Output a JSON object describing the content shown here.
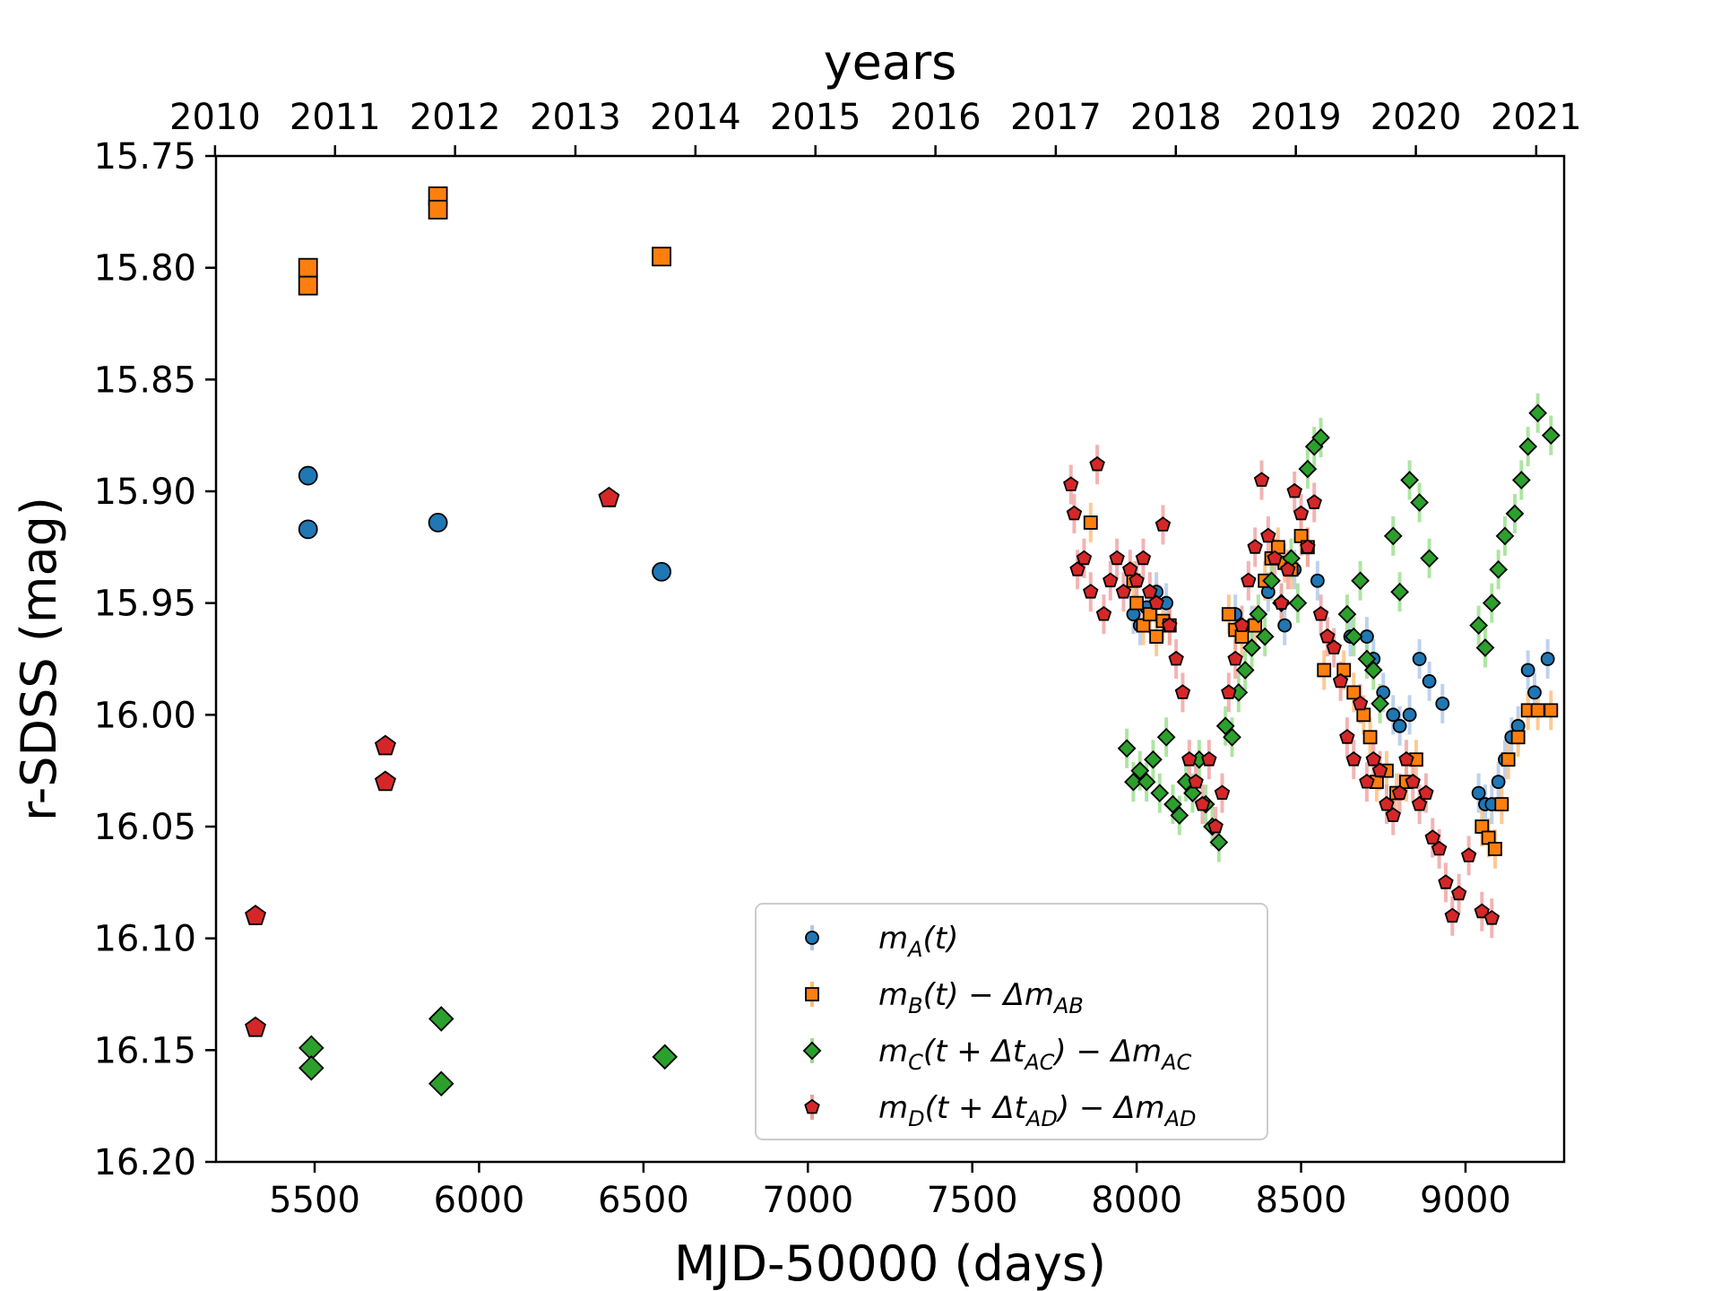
{
  "chart_data": {
    "type": "scatter",
    "xlabel": "MJD-50000 (days)",
    "ylabel": "r-SDSS (mag)",
    "top_xlabel": "years",
    "xlim": [
      5200,
      9300
    ],
    "ylim": [
      16.2,
      15.75
    ],
    "y_inverted": true,
    "x_ticks": [
      5500,
      6000,
      6500,
      7000,
      7500,
      8000,
      8500,
      9000
    ],
    "x_tick_labels": [
      "5500",
      "6000",
      "6500",
      "7000",
      "7500",
      "8000",
      "8500",
      "9000"
    ],
    "y_ticks": [
      15.75,
      15.8,
      15.85,
      15.9,
      15.95,
      16.0,
      16.05,
      16.1,
      16.15,
      16.2
    ],
    "y_tick_labels": [
      "15.75",
      "15.80",
      "15.85",
      "15.90",
      "15.95",
      "16.00",
      "16.05",
      "16.10",
      "16.15",
      "16.20"
    ],
    "year_ticks": [
      {
        "label": "2010",
        "mjd": 5197
      },
      {
        "label": "2011",
        "mjd": 5562
      },
      {
        "label": "2012",
        "mjd": 5927
      },
      {
        "label": "2013",
        "mjd": 6293
      },
      {
        "label": "2014",
        "mjd": 6658
      },
      {
        "label": "2015",
        "mjd": 7023
      },
      {
        "label": "2016",
        "mjd": 7388
      },
      {
        "label": "2017",
        "mjd": 7754
      },
      {
        "label": "2018",
        "mjd": 8119
      },
      {
        "label": "2019",
        "mjd": 8484
      },
      {
        "label": "2020",
        "mjd": 8849
      },
      {
        "label": "2021",
        "mjd": 9215
      }
    ],
    "legend_position": "lower-right",
    "series": [
      {
        "name": "A",
        "legend": "m_A(t)",
        "color": "#1f77b4",
        "errcolor": "#aec7e8",
        "marker": "circle",
        "early": [
          [
            5480,
            15.893
          ],
          [
            5480,
            15.917
          ],
          [
            5875,
            15.914
          ],
          [
            6555,
            15.936
          ]
        ],
        "late": [
          [
            7990,
            15.955
          ],
          [
            8010,
            15.96
          ],
          [
            8030,
            15.952
          ],
          [
            8060,
            15.945
          ],
          [
            8090,
            15.95
          ],
          [
            8300,
            15.955
          ],
          [
            8350,
            15.96
          ],
          [
            8400,
            15.945
          ],
          [
            8450,
            15.96
          ],
          [
            8480,
            15.935
          ],
          [
            8550,
            15.94
          ],
          [
            8650,
            15.965
          ],
          [
            8700,
            15.965
          ],
          [
            8720,
            15.975
          ],
          [
            8750,
            15.99
          ],
          [
            8780,
            16.0
          ],
          [
            8800,
            16.005
          ],
          [
            8830,
            16.0
          ],
          [
            8860,
            15.975
          ],
          [
            8890,
            15.985
          ],
          [
            8930,
            15.995
          ],
          [
            9040,
            16.035
          ],
          [
            9060,
            16.04
          ],
          [
            9080,
            16.04
          ],
          [
            9100,
            16.03
          ],
          [
            9120,
            16.02
          ],
          [
            9140,
            16.01
          ],
          [
            9160,
            16.005
          ],
          [
            9190,
            15.98
          ],
          [
            9210,
            15.99
          ],
          [
            9250,
            15.975
          ]
        ]
      },
      {
        "name": "B",
        "legend": "m_B(t) − Δm_AB",
        "color": "#ff7f0e",
        "errcolor": "#ffbb78",
        "marker": "square",
        "early": [
          [
            5480,
            15.8
          ],
          [
            5480,
            15.808
          ],
          [
            5875,
            15.768
          ],
          [
            5875,
            15.774
          ],
          [
            6555,
            15.795
          ]
        ],
        "late": [
          [
            7860,
            15.914
          ],
          [
            7990,
            15.94
          ],
          [
            8000,
            15.95
          ],
          [
            8020,
            15.96
          ],
          [
            8040,
            15.955
          ],
          [
            8060,
            15.965
          ],
          [
            8080,
            15.958
          ],
          [
            8100,
            15.96
          ],
          [
            8280,
            15.955
          ],
          [
            8300,
            15.962
          ],
          [
            8320,
            15.965
          ],
          [
            8360,
            15.96
          ],
          [
            8390,
            15.94
          ],
          [
            8410,
            15.93
          ],
          [
            8430,
            15.925
          ],
          [
            8450,
            15.932
          ],
          [
            8470,
            15.935
          ],
          [
            8500,
            15.92
          ],
          [
            8520,
            15.925
          ],
          [
            8570,
            15.98
          ],
          [
            8630,
            15.98
          ],
          [
            8660,
            15.99
          ],
          [
            8690,
            16.0
          ],
          [
            8710,
            16.01
          ],
          [
            8730,
            16.03
          ],
          [
            8760,
            16.025
          ],
          [
            8790,
            16.035
          ],
          [
            8820,
            16.03
          ],
          [
            8850,
            16.02
          ],
          [
            9050,
            16.05
          ],
          [
            9070,
            16.055
          ],
          [
            9090,
            16.06
          ],
          [
            9110,
            16.04
          ],
          [
            9130,
            16.02
          ],
          [
            9160,
            16.01
          ],
          [
            9190,
            15.998
          ],
          [
            9220,
            15.998
          ],
          [
            9260,
            15.998
          ]
        ]
      },
      {
        "name": "C",
        "legend": "m_C(t + Δt_AC) − Δm_AC",
        "color": "#2ca02c",
        "errcolor": "#98df8a",
        "marker": "diamond",
        "early": [
          [
            5490,
            16.149
          ],
          [
            5490,
            16.158
          ],
          [
            5885,
            16.136
          ],
          [
            5885,
            16.165
          ],
          [
            6565,
            16.153
          ]
        ],
        "late": [
          [
            7970,
            16.015
          ],
          [
            7990,
            16.03
          ],
          [
            8010,
            16.025
          ],
          [
            8030,
            16.03
          ],
          [
            8050,
            16.02
          ],
          [
            8070,
            16.035
          ],
          [
            8090,
            16.01
          ],
          [
            8110,
            16.04
          ],
          [
            8130,
            16.045
          ],
          [
            8150,
            16.03
          ],
          [
            8170,
            16.035
          ],
          [
            8190,
            16.02
          ],
          [
            8210,
            16.04
          ],
          [
            8230,
            16.05
          ],
          [
            8250,
            16.057
          ],
          [
            8270,
            16.005
          ],
          [
            8290,
            16.01
          ],
          [
            8310,
            15.99
          ],
          [
            8330,
            15.98
          ],
          [
            8350,
            15.97
          ],
          [
            8370,
            15.955
          ],
          [
            8390,
            15.965
          ],
          [
            8410,
            15.94
          ],
          [
            8440,
            15.95
          ],
          [
            8470,
            15.93
          ],
          [
            8490,
            15.95
          ],
          [
            8520,
            15.89
          ],
          [
            8540,
            15.88
          ],
          [
            8560,
            15.876
          ],
          [
            8640,
            15.955
          ],
          [
            8660,
            15.965
          ],
          [
            8680,
            15.94
          ],
          [
            8700,
            15.975
          ],
          [
            8720,
            15.98
          ],
          [
            8740,
            15.995
          ],
          [
            8780,
            15.92
          ],
          [
            8800,
            15.945
          ],
          [
            8830,
            15.895
          ],
          [
            8860,
            15.905
          ],
          [
            8890,
            15.93
          ],
          [
            9040,
            15.96
          ],
          [
            9060,
            15.97
          ],
          [
            9080,
            15.95
          ],
          [
            9100,
            15.935
          ],
          [
            9120,
            15.92
          ],
          [
            9150,
            15.91
          ],
          [
            9170,
            15.895
          ],
          [
            9190,
            15.88
          ],
          [
            9220,
            15.865
          ],
          [
            9260,
            15.875
          ]
        ]
      },
      {
        "name": "D",
        "legend": "m_D(t + Δt_AD) − Δm_AD",
        "color": "#d62728",
        "errcolor": "#f0a0a0",
        "marker": "pentagon",
        "early": [
          [
            5320,
            16.09
          ],
          [
            5320,
            16.14
          ],
          [
            5715,
            16.014
          ],
          [
            5715,
            16.03
          ],
          [
            6395,
            15.903
          ]
        ],
        "late": [
          [
            7800,
            15.897
          ],
          [
            7810,
            15.91
          ],
          [
            7820,
            15.935
          ],
          [
            7840,
            15.93
          ],
          [
            7860,
            15.945
          ],
          [
            7880,
            15.888
          ],
          [
            7900,
            15.955
          ],
          [
            7920,
            15.94
          ],
          [
            7940,
            15.93
          ],
          [
            7960,
            15.945
          ],
          [
            7980,
            15.935
          ],
          [
            8000,
            15.94
          ],
          [
            8020,
            15.93
          ],
          [
            8040,
            15.945
          ],
          [
            8060,
            15.95
          ],
          [
            8080,
            15.915
          ],
          [
            8100,
            15.96
          ],
          [
            8120,
            15.975
          ],
          [
            8140,
            15.99
          ],
          [
            8160,
            16.02
          ],
          [
            8180,
            16.03
          ],
          [
            8200,
            16.04
          ],
          [
            8220,
            16.02
          ],
          [
            8240,
            16.05
          ],
          [
            8260,
            16.035
          ],
          [
            8280,
            15.99
          ],
          [
            8300,
            15.975
          ],
          [
            8320,
            15.96
          ],
          [
            8340,
            15.94
          ],
          [
            8360,
            15.925
          ],
          [
            8380,
            15.895
          ],
          [
            8400,
            15.92
          ],
          [
            8420,
            15.93
          ],
          [
            8440,
            15.95
          ],
          [
            8460,
            15.935
          ],
          [
            8480,
            15.9
          ],
          [
            8500,
            15.91
          ],
          [
            8520,
            15.925
          ],
          [
            8540,
            15.905
          ],
          [
            8560,
            15.955
          ],
          [
            8580,
            15.965
          ],
          [
            8600,
            15.97
          ],
          [
            8620,
            15.985
          ],
          [
            8640,
            16.01
          ],
          [
            8660,
            16.02
          ],
          [
            8680,
            15.995
          ],
          [
            8700,
            16.03
          ],
          [
            8720,
            16.02
          ],
          [
            8740,
            16.025
          ],
          [
            8760,
            16.04
          ],
          [
            8780,
            16.045
          ],
          [
            8800,
            16.035
          ],
          [
            8820,
            16.02
          ],
          [
            8840,
            16.03
          ],
          [
            8860,
            16.04
          ],
          [
            8880,
            16.035
          ],
          [
            8900,
            16.055
          ],
          [
            8920,
            16.06
          ],
          [
            8940,
            16.075
          ],
          [
            8960,
            16.09
          ],
          [
            8980,
            16.08
          ],
          [
            9010,
            16.063
          ],
          [
            9050,
            16.088
          ],
          [
            9080,
            16.091
          ]
        ]
      }
    ]
  }
}
